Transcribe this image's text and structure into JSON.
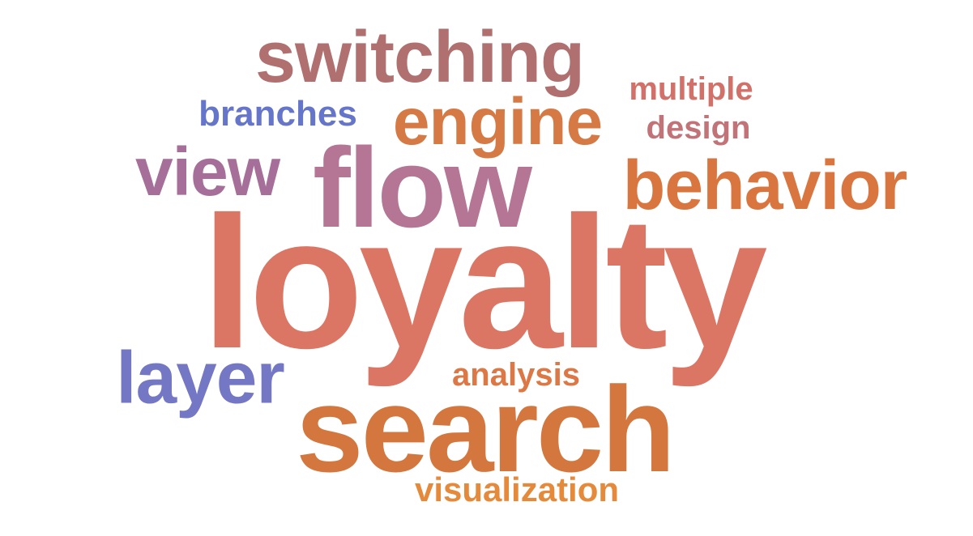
{
  "words": {
    "loyalty": {
      "text": "loyalty",
      "color": "#dc7664"
    },
    "search": {
      "text": "search",
      "color": "#d4773f"
    },
    "flow": {
      "text": "flow",
      "color": "#b57595"
    },
    "switching": {
      "text": "switching",
      "color": "#b0706f"
    },
    "engine": {
      "text": "engine",
      "color": "#d67a45"
    },
    "behavior": {
      "text": "behavior",
      "color": "#d9763f"
    },
    "view": {
      "text": "view",
      "color": "#a56f99"
    },
    "layer": {
      "text": "layer",
      "color": "#7377c4"
    },
    "branches": {
      "text": "branches",
      "color": "#6575c9"
    },
    "multiple": {
      "text": "multiple",
      "color": "#d2716a"
    },
    "design": {
      "text": "design",
      "color": "#c27377"
    },
    "analysis": {
      "text": "analysis",
      "color": "#dc7845"
    },
    "visualization": {
      "text": "visualization",
      "color": "#e48a3a"
    }
  }
}
